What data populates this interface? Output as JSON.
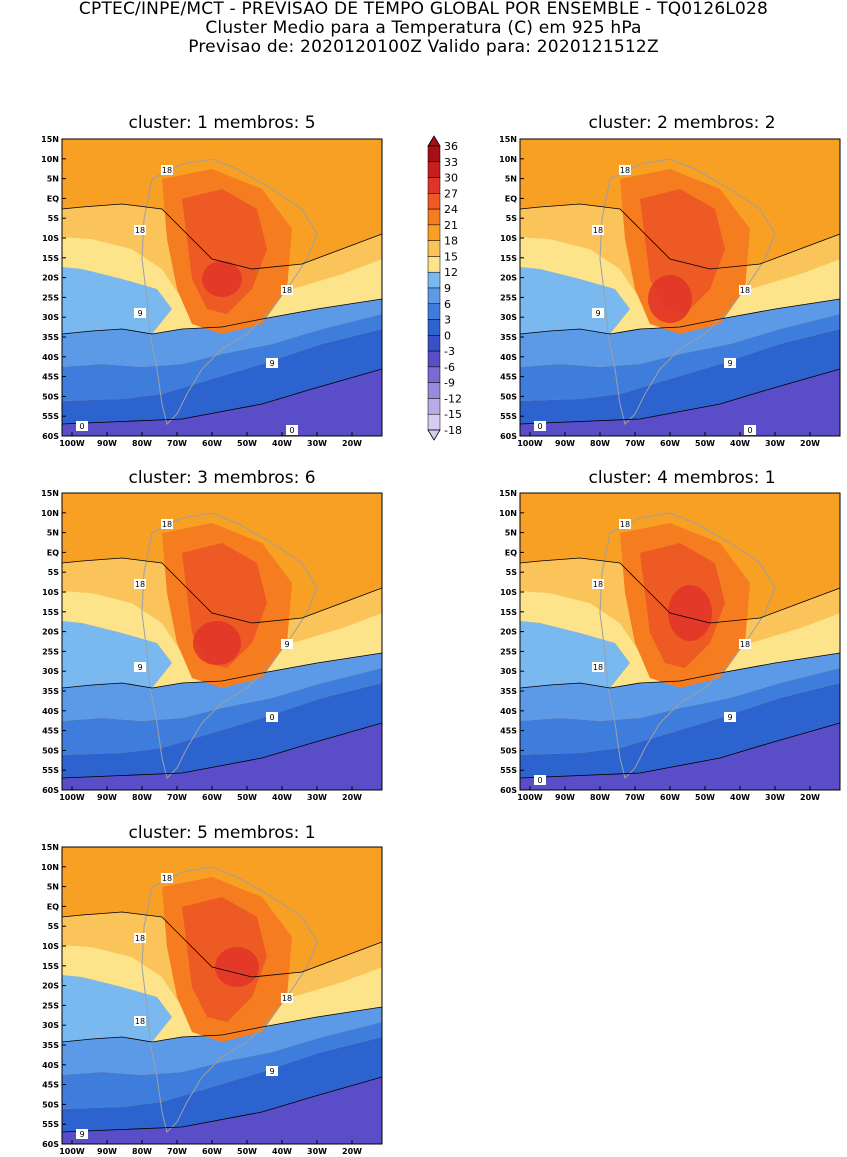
{
  "header": {
    "line1": "CPTEC/INPE/MCT - PREVISAO DE TEMPO GLOBAL POR ENSEMBLE - TQ0126L028",
    "line2": "Cluster Medio para a Temperatura (C) em 925 hPa",
    "line3": "Previsao de: 2020120100Z   Valido para: 2020121512Z"
  },
  "lat_ticks": [
    "15N",
    "10N",
    "5N",
    "EQ",
    "5S",
    "10S",
    "15S",
    "20S",
    "25S",
    "30S",
    "35S",
    "40S",
    "45S",
    "50S",
    "55S",
    "60S"
  ],
  "lon_ticks": [
    "100W",
    "90W",
    "80W",
    "70W",
    "60W",
    "50W",
    "40W",
    "30W",
    "20W"
  ],
  "colorbar": {
    "levels": [
      "36",
      "33",
      "30",
      "27",
      "24",
      "21",
      "18",
      "15",
      "12",
      "9",
      "6",
      "3",
      "0",
      "-3",
      "-6",
      "-9",
      "-12",
      "-15",
      "-18"
    ],
    "colors": [
      "#a50f15",
      "#c81e1e",
      "#e0342a",
      "#ee5a24",
      "#f57c1f",
      "#f8a024",
      "#fbc45a",
      "#fde38a",
      "#7ab8f0",
      "#5c9ae8",
      "#3f7ddc",
      "#2c63cf",
      "#3b4fc8",
      "#5a4dc8",
      "#7a6ad2",
      "#9a8ade",
      "#b9abe8",
      "#d6ccf2"
    ]
  },
  "panels": [
    {
      "title": "cluster: 1   membros: 5",
      "labels": [
        "18",
        "18",
        "18",
        "9",
        "9",
        "0",
        "0"
      ]
    },
    {
      "title": "cluster: 2   membros: 2",
      "labels": [
        "18",
        "18",
        "18",
        "9",
        "9",
        "0",
        "0"
      ]
    },
    {
      "title": "cluster: 3   membros: 6",
      "labels": [
        "18",
        "18",
        "9",
        "9",
        "0"
      ]
    },
    {
      "title": "cluster: 4   membros: 1",
      "labels": [
        "18",
        "18",
        "18",
        "18",
        "9",
        "0"
      ]
    },
    {
      "title": "cluster: 5   membros: 1",
      "labels": [
        "18",
        "18",
        "18",
        "18",
        "9",
        "9"
      ]
    }
  ]
}
